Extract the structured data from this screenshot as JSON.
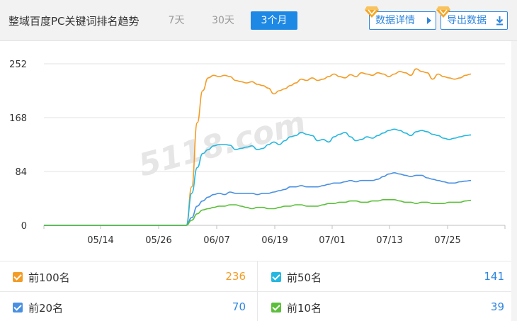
{
  "header": {
    "title": "整域百度PC关键词排名趋势",
    "tabs": [
      {
        "label": "7天",
        "active": false
      },
      {
        "label": "30天",
        "active": false
      },
      {
        "label": "3个月",
        "active": true
      }
    ],
    "detail_button": "数据详情",
    "export_button": "导出数据"
  },
  "watermark": "5118.com",
  "chart_data": {
    "type": "line",
    "x_ticks": [
      "05/14",
      "05/26",
      "06/07",
      "06/19",
      "07/01",
      "07/13",
      "07/25"
    ],
    "y_ticks": [
      0,
      84,
      168,
      252
    ],
    "ylim": [
      0,
      252
    ],
    "series": [
      {
        "name": "前100名",
        "color": "#f39c26",
        "values": [
          0,
          0,
          0,
          0,
          0,
          0,
          0,
          0,
          0,
          0,
          0,
          0,
          0,
          0,
          0,
          0,
          0,
          0,
          0,
          0,
          0,
          0,
          0,
          0,
          0,
          0,
          0,
          60,
          160,
          210,
          230,
          234,
          232,
          234,
          232,
          226,
          224,
          222,
          224,
          220,
          218,
          214,
          205,
          210,
          213,
          218,
          222,
          228,
          226,
          230,
          226,
          228,
          232,
          236,
          232,
          230,
          235,
          232,
          238,
          236,
          234,
          238,
          236,
          232,
          236,
          240,
          238,
          234,
          244,
          240,
          238,
          228,
          236,
          232,
          230,
          228,
          230,
          234,
          236
        ]
      },
      {
        "name": "前50名",
        "color": "#25b7e0",
        "values": [
          0,
          0,
          0,
          0,
          0,
          0,
          0,
          0,
          0,
          0,
          0,
          0,
          0,
          0,
          0,
          0,
          0,
          0,
          0,
          0,
          0,
          0,
          0,
          0,
          0,
          0,
          0,
          50,
          90,
          112,
          118,
          124,
          126,
          126,
          125,
          118,
          120,
          122,
          124,
          118,
          120,
          126,
          130,
          126,
          132,
          138,
          140,
          145,
          142,
          140,
          132,
          134,
          130,
          138,
          142,
          145,
          138,
          132,
          134,
          138,
          136,
          140,
          144,
          148,
          150,
          148,
          144,
          140,
          146,
          148,
          146,
          142,
          140,
          136,
          134,
          136,
          138,
          140,
          141
        ]
      },
      {
        "name": "前20名",
        "color": "#4a90e2",
        "values": [
          0,
          0,
          0,
          0,
          0,
          0,
          0,
          0,
          0,
          0,
          0,
          0,
          0,
          0,
          0,
          0,
          0,
          0,
          0,
          0,
          0,
          0,
          0,
          0,
          0,
          0,
          0,
          12,
          30,
          38,
          44,
          48,
          50,
          48,
          52,
          50,
          50,
          50,
          50,
          48,
          50,
          50,
          52,
          54,
          56,
          60,
          60,
          62,
          60,
          60,
          60,
          62,
          64,
          66,
          66,
          68,
          70,
          68,
          70,
          70,
          70,
          72,
          76,
          80,
          82,
          80,
          78,
          76,
          78,
          78,
          74,
          72,
          70,
          68,
          66,
          66,
          68,
          69,
          70
        ]
      },
      {
        "name": "前10名",
        "color": "#5cbf3b",
        "values": [
          0,
          0,
          0,
          0,
          0,
          0,
          0,
          0,
          0,
          0,
          0,
          0,
          0,
          0,
          0,
          0,
          0,
          0,
          0,
          0,
          0,
          0,
          0,
          0,
          0,
          0,
          0,
          8,
          18,
          24,
          26,
          28,
          30,
          30,
          32,
          32,
          30,
          28,
          26,
          28,
          28,
          26,
          26,
          28,
          30,
          30,
          32,
          32,
          30,
          30,
          30,
          32,
          34,
          34,
          36,
          36,
          38,
          38,
          36,
          36,
          38,
          38,
          40,
          40,
          40,
          38,
          36,
          36,
          34,
          36,
          36,
          34,
          34,
          34,
          36,
          36,
          36,
          38,
          39
        ]
      }
    ]
  },
  "legend": [
    {
      "label": "前100名",
      "value": "236",
      "color": "#f39c26",
      "checked": true
    },
    {
      "label": "前50名",
      "value": "141",
      "color": "#25b7e0",
      "checked": true
    },
    {
      "label": "前20名",
      "value": "70",
      "color": "#4a90e2",
      "checked": true
    },
    {
      "label": "前10名",
      "value": "39",
      "color": "#5cbf3b",
      "checked": true
    }
  ]
}
